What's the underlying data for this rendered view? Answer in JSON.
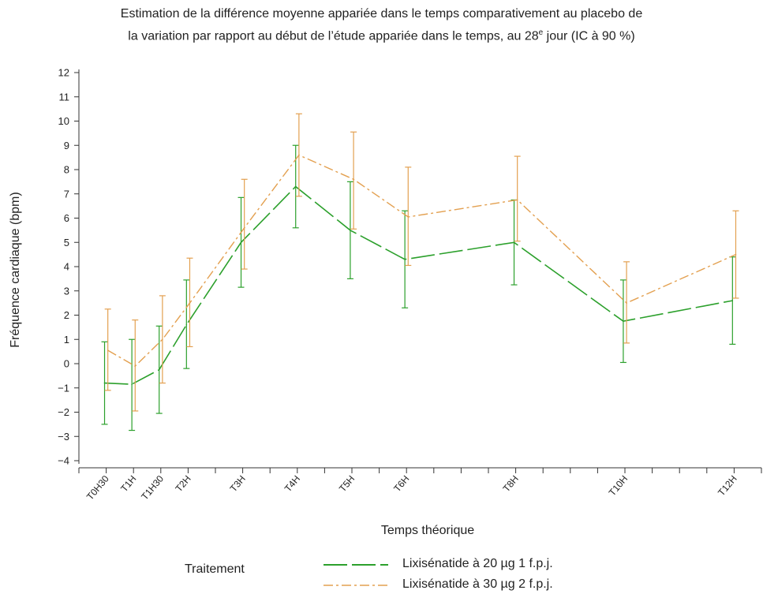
{
  "chart_data": {
    "type": "line",
    "title_line1": "Estimation de la différence moyenne appariée dans le temps comparativement au placebo de",
    "title_line2_pre": "la variation par rapport au début de l’étude appariée dans le temps, au 28",
    "title_line2_sup": "e",
    "title_line2_post": " jour (IC à 90 %)",
    "xlabel": "Temps théorique",
    "ylabel": "Fréquence cardiaque (bpm)",
    "ylim": [
      -4,
      12
    ],
    "yticks": [
      -4,
      -3,
      -2,
      -1,
      0,
      1,
      2,
      3,
      4,
      5,
      6,
      7,
      8,
      9,
      10,
      11,
      12
    ],
    "xlim": [
      0,
      12.5
    ],
    "x_ticks_all": [
      0,
      0.5,
      1,
      1.5,
      2,
      2.5,
      3,
      3.5,
      4,
      4.5,
      5,
      5.5,
      6,
      6.5,
      7,
      7.5,
      8,
      8.5,
      9,
      9.5,
      10,
      10.5,
      11,
      11.5,
      12,
      12.5
    ],
    "categories": [
      {
        "label": "T0H30",
        "x": 0.5
      },
      {
        "label": "T1H",
        "x": 1
      },
      {
        "label": "T1H30",
        "x": 1.5
      },
      {
        "label": "T2H",
        "x": 2
      },
      {
        "label": "T3H",
        "x": 3
      },
      {
        "label": "T4H",
        "x": 4
      },
      {
        "label": "T5H",
        "x": 5
      },
      {
        "label": "T6H",
        "x": 6
      },
      {
        "label": "T8H",
        "x": 8
      },
      {
        "label": "T10H",
        "x": 10
      },
      {
        "label": "T12H",
        "x": 12
      }
    ],
    "grid": false,
    "legend_title": "Traitement",
    "legend_position": "bottom",
    "series": [
      {
        "name": "Lixisénatide à 20 µg 1 f.p.j.",
        "color": "#2ca02c",
        "dash": "long-dash",
        "x_offset": -0.03,
        "values": [
          -0.8,
          -0.85,
          -0.25,
          1.6,
          5.0,
          7.3,
          5.5,
          4.3,
          5.0,
          1.75,
          2.6
        ],
        "lower": [
          -2.5,
          -2.75,
          -2.05,
          -0.2,
          3.15,
          5.6,
          3.5,
          2.3,
          3.25,
          0.05,
          0.8
        ],
        "upper": [
          0.9,
          1.0,
          1.55,
          3.45,
          6.85,
          9.0,
          7.5,
          6.3,
          6.75,
          3.45,
          4.4
        ]
      },
      {
        "name": "Lixisénatide à 30 µg 2 f.p.j.",
        "color": "#e3a050",
        "dash": "dash-dot",
        "x_offset": 0.03,
        "values": [
          0.55,
          -0.1,
          1.0,
          2.5,
          5.6,
          8.6,
          7.6,
          6.05,
          6.75,
          2.5,
          4.5
        ],
        "lower": [
          -1.1,
          -1.95,
          -0.8,
          0.7,
          3.9,
          6.9,
          5.55,
          4.05,
          5.05,
          0.85,
          2.7
        ],
        "upper": [
          2.25,
          1.8,
          2.8,
          4.35,
          7.6,
          10.3,
          9.55,
          8.1,
          8.55,
          4.2,
          6.3
        ]
      }
    ]
  }
}
